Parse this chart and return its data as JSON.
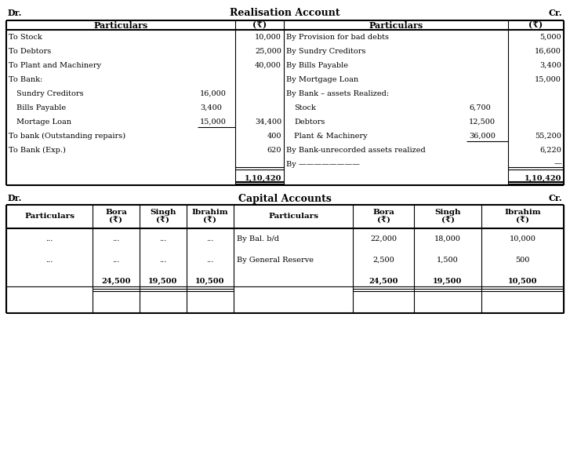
{
  "title1": "Realisation Account",
  "title2": "Capital Accounts",
  "dr": "Dr.",
  "cr": "Cr.",
  "bg_color": "#ffffff",
  "t1_left": [
    [
      "To Stock",
      "",
      "10,000"
    ],
    [
      "To Debtors",
      "",
      "25,000"
    ],
    [
      "To Plant and Machinery",
      "",
      "40,000"
    ],
    [
      "To Bank:",
      "",
      ""
    ],
    [
      "  Sundry Creditors",
      "16,000",
      ""
    ],
    [
      "  Bills Payable",
      "3,400",
      ""
    ],
    [
      "  Mortage Loan",
      "15,000",
      "34,400"
    ],
    [
      "To bank (Outstanding repairs)",
      "",
      "400"
    ],
    [
      "To Bank (Exp.)",
      "",
      "620"
    ],
    [
      "",
      "",
      ""
    ],
    [
      "",
      "",
      "1,10,420"
    ]
  ],
  "t1_right": [
    [
      "By Provision for bad debts",
      "",
      "5,000"
    ],
    [
      "By Sundry Creditors",
      "",
      "16,600"
    ],
    [
      "By Bills Payable",
      "",
      "3,400"
    ],
    [
      "By Mortgage Loan",
      "",
      "15,000"
    ],
    [
      "By Bank – assets Realized:",
      "",
      ""
    ],
    [
      "  Stock",
      "6,700",
      ""
    ],
    [
      "  Debtors",
      "12,500",
      ""
    ],
    [
      "  Plant & Machinery",
      "36,000",
      "55,200"
    ],
    [
      "By Bank-unrecorded assets realized",
      "",
      "6,220"
    ],
    [
      "By ————————",
      "",
      "—"
    ],
    [
      "",
      "",
      "1,10,420"
    ]
  ],
  "t2_left": [
    [
      "...",
      "...",
      "...",
      "..."
    ],
    [
      "...",
      "...",
      "...",
      "..."
    ],
    [
      "",
      "24,500",
      "19,500",
      "10,500"
    ],
    [
      "",
      "",
      "",
      ""
    ]
  ],
  "t2_right": [
    [
      "By Bal. b/d",
      "22,000",
      "18,000",
      "10,000"
    ],
    [
      "By General Reserve",
      "2,500",
      "1,500",
      "500"
    ],
    [
      "",
      "24,500",
      "19,500",
      "10,500"
    ],
    [
      "",
      "",
      "",
      ""
    ]
  ]
}
